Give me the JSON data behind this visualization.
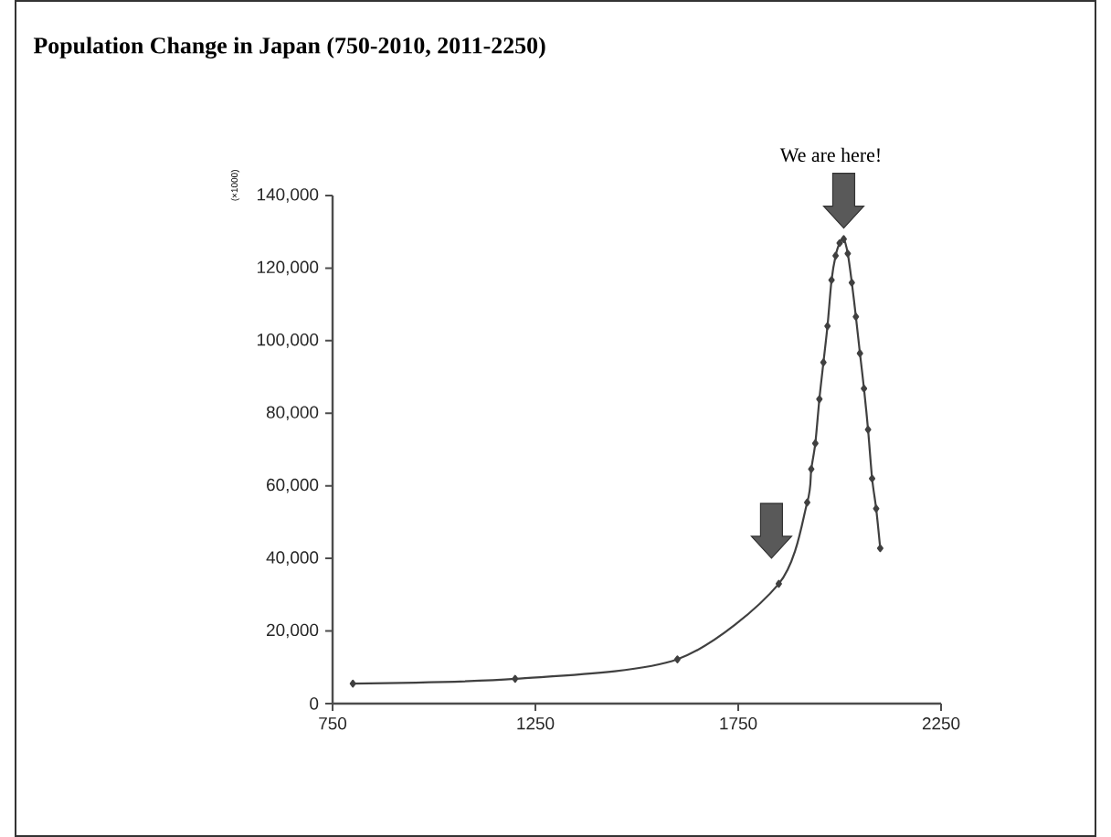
{
  "chart_data": {
    "type": "line",
    "title": "Population Change in Japan (750-2010, 2011-2250)",
    "ylabel": "(×1000)",
    "annotations": [
      "We are here!"
    ],
    "x": [
      800,
      1200,
      1600,
      1850,
      1920,
      1930,
      1940,
      1950,
      1960,
      1970,
      1980,
      1990,
      2000,
      2010,
      2020,
      2030,
      2040,
      2050,
      2060,
      2070,
      2080,
      2090,
      2100
    ],
    "series": [
      {
        "color": "#404040",
        "values": [
          5500,
          6800,
          12200,
          33000,
          55400,
          64600,
          71700,
          83900,
          94000,
          104000,
          116700,
          123400,
          126900,
          128000,
          124000,
          116000,
          106600,
          96500,
          86800,
          75500,
          62000,
          53700,
          42800
        ]
      }
    ],
    "xlim": [
      750,
      2250
    ],
    "xticks": [
      750,
      1250,
      1750,
      2250
    ],
    "ylim": [
      0,
      140000
    ],
    "yticks": [
      0,
      {
        "value": 20000,
        "label": "20,000"
      },
      {
        "value": 40000,
        "label": "40,000"
      },
      {
        "value": 60000,
        "label": "60,000"
      },
      {
        "value": 80000,
        "label": "80,000"
      },
      {
        "value": 100000,
        "label": "100,000"
      },
      {
        "value": 120000,
        "label": "120,000"
      },
      {
        "value": 140000,
        "label": "140,000"
      }
    ],
    "grid": false,
    "marker": "diamond",
    "line_style": "solid"
  }
}
